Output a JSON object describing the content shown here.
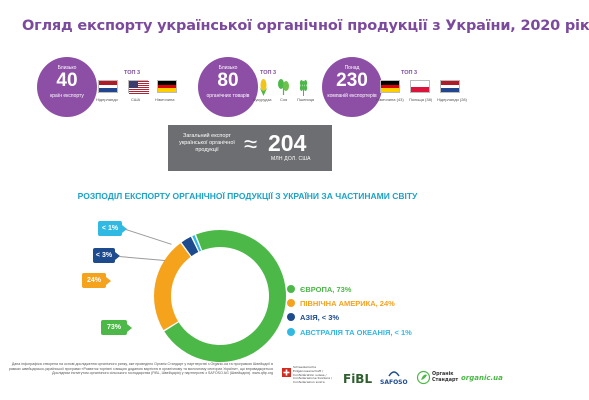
{
  "title": "Огляд експорту української органічної продукції з України, 2020 рік",
  "stats": [
    {
      "pre": "Близько",
      "value": "40",
      "post": "країн експорту",
      "top_label": "ТОП 3",
      "items": [
        "Нідерланди",
        "США",
        "Німеччина"
      ]
    },
    {
      "pre": "Близько",
      "value": "80",
      "post": "органічних товарів",
      "top_label": "ТОП 3",
      "items": [
        "Кукурудза",
        "Соя",
        "Пшениця"
      ]
    },
    {
      "pre": "Понад",
      "value": "230",
      "post": "компаній експортерів",
      "top_label": "ТОП 3",
      "items": [
        "Німеччина (43)",
        "Польща (38)",
        "Нідерланди (28)"
      ]
    }
  ],
  "total": {
    "label": "Загальний експорт української органічної продукції",
    "approx": "≈",
    "value": "204",
    "unit": "МЛН ДОЛ. США"
  },
  "section_title": "РОЗПОДІЛ ЕКСПОРТУ ОРГАНІЧНОЇ ПРОДУКЦІЇ З УКРАЇНИ ЗА ЧАСТИНАМИ СВІТУ",
  "chart_data": {
    "type": "pie",
    "title": "РОЗПОДІЛ ЕКСПОРТУ ОРГАНІЧНОЇ ПРОДУКЦІЇ З УКРАЇНИ ЗА ЧАСТИНАМИ СВІТУ",
    "categories": [
      "ЄВРОПА",
      "ПІВНІЧНА АМЕРИКА",
      "АЗІЯ",
      "АВСТРАЛІЯ ТА ОКЕАНІЯ"
    ],
    "values": [
      73,
      24,
      3,
      1
    ],
    "data_labels": [
      "73%",
      "24%",
      "< 3%",
      "< 1%"
    ],
    "legend_labels": [
      "ЄВРОПА, 73%",
      "ПІВНІЧНА АМЕРИКА, 24%",
      "АЗІЯ, < 3%",
      "АВСТРАЛІЯ ТА ОКЕАНІЯ, < 1%"
    ],
    "colors": [
      "#4cb848",
      "#f5a21d",
      "#1e4b8e",
      "#30b9e3"
    ],
    "legend_position": "right"
  },
  "footnote": "Дана інфографіка створена на основі дослідження органічного ринку, яке проведено Органік Стандарт у партнерстві з Organic.ua та програмою Швейцарії в рамках швейцарсько-української програми «Розвиток торгівлі з вищою доданою вартістю в органічному та молочному секторах України», що впроваджується Дослідним інститутом органічного сільського господарства (FiBL, Швейцарія) у партнерстві з SAFOSO AG (Швейцарія). www.qftp.org",
  "logos": {
    "swiss": "Schweizerische Eidgenossenschaft / Confédération suisse / Confederazione Svizzera / Confederaziun svizra",
    "fibl": "FiBL",
    "safoso": "SAFOSO",
    "organic_standard": "Органік Стандарт",
    "organic_ua": "organic.ua"
  }
}
